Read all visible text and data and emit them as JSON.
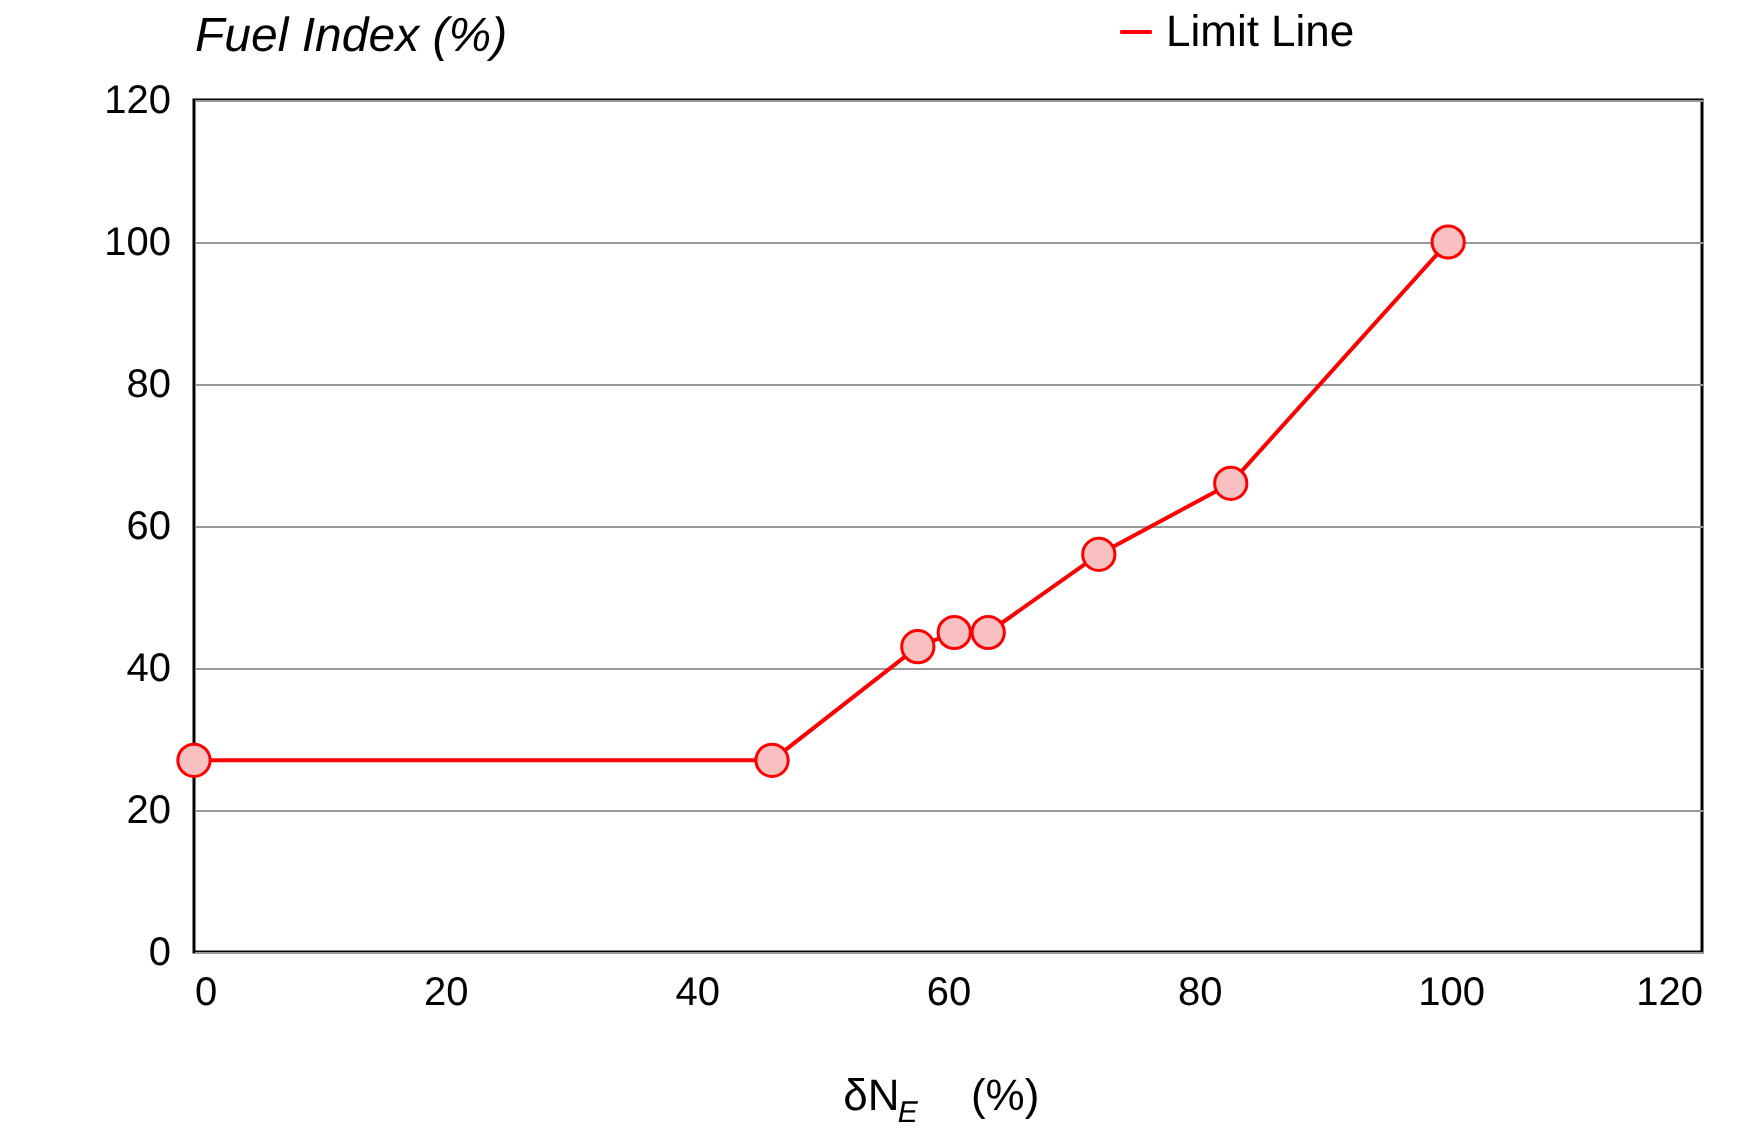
{
  "chart_data": {
    "type": "line",
    "ylabel": "Fuel Index (%)",
    "xlabel": "δN$_{E}$  (%)",
    "series": [
      {
        "name": "Limit Line",
        "color": "#ff0000",
        "x": [
          0,
          46,
          57.6,
          60.5,
          63.2,
          72,
          82.5,
          99.8
        ],
        "values": [
          27,
          27,
          43,
          45,
          45,
          56,
          66,
          100
        ]
      }
    ],
    "xlim": [
      0,
      120
    ],
    "xticks": [
      0,
      20,
      40,
      60,
      80,
      100,
      120
    ],
    "ylim": [
      0,
      120
    ],
    "yticks": [
      0,
      20,
      40,
      60,
      80,
      100,
      120
    ],
    "grid": "y",
    "legend": "top right",
    "marker": "circle",
    "line_style": "solid"
  }
}
